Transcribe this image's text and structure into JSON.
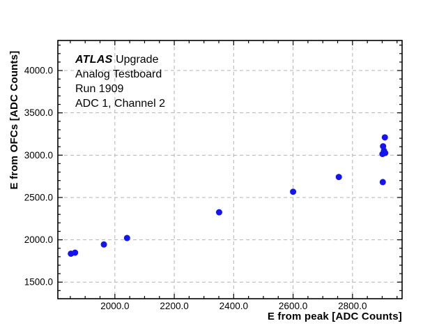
{
  "annotation": {
    "line1_bold_italic": "ATLAS",
    "line1_rest": " Upgrade",
    "line2": "Analog Testboard",
    "line3": "Run 1909",
    "line4": "ADC 1, Channel 2"
  },
  "chart_data": {
    "type": "scatter",
    "title": "",
    "xlabel": "E from peak [ADC Counts]",
    "ylabel": "E from OFCs [ADC Counts]",
    "xlim": [
      1808,
      2967
    ],
    "ylim": [
      1304,
      4355
    ],
    "grid": true,
    "x_ticks": {
      "values": [
        2000,
        2200,
        2400,
        2600,
        2800
      ],
      "labels": [
        "2000.0",
        "2200.0",
        "2400.0",
        "2600.0",
        "2800.0"
      ],
      "minor_step": 50
    },
    "y_ticks": {
      "values": [
        1500,
        2000,
        2500,
        3000,
        3500,
        4000
      ],
      "labels": [
        "1500.0",
        "2000.0",
        "2500.0",
        "3000.0",
        "3500.0",
        "4000.0"
      ],
      "minor_step": 100
    },
    "marker": {
      "shape": "circle",
      "color": "#1414f0",
      "radius": 4.5
    },
    "grid_color": "#b3b3b3",
    "frame_color": "#000000",
    "points": [
      [
        1852,
        1836
      ],
      [
        1866,
        1848
      ],
      [
        1963,
        1945
      ],
      [
        2041,
        2021
      ],
      [
        2351,
        2325
      ],
      [
        2600,
        2568
      ],
      [
        2754,
        2742
      ],
      [
        2902,
        2682
      ],
      [
        2909,
        3210
      ],
      [
        2903,
        3105
      ],
      [
        2906,
        3053
      ],
      [
        2901,
        3014
      ],
      [
        2910,
        3026
      ]
    ]
  }
}
